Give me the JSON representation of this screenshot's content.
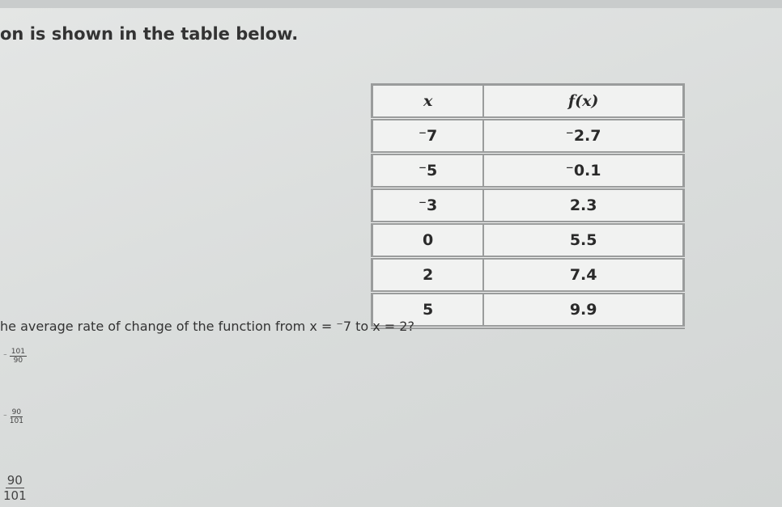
{
  "intro": "on is shown in the table below.",
  "table": {
    "header": [
      "x",
      "f(x)"
    ],
    "rows": [
      [
        "⁻7",
        "⁻2.7"
      ],
      [
        "⁻5",
        "⁻0.1"
      ],
      [
        "⁻3",
        "2.3"
      ],
      [
        "0",
        "5.5"
      ],
      [
        "2",
        "7.4"
      ],
      [
        "5",
        "9.9"
      ]
    ]
  },
  "question": "he average rate of change of the function from x = ⁻7 to x = 2?",
  "options": [
    {
      "sign": "⁻",
      "numerator": "101",
      "denominator": "90"
    },
    {
      "sign": "⁻",
      "numerator": "90",
      "denominator": "101"
    },
    {
      "numerator": "90",
      "denominator": "101"
    }
  ]
}
